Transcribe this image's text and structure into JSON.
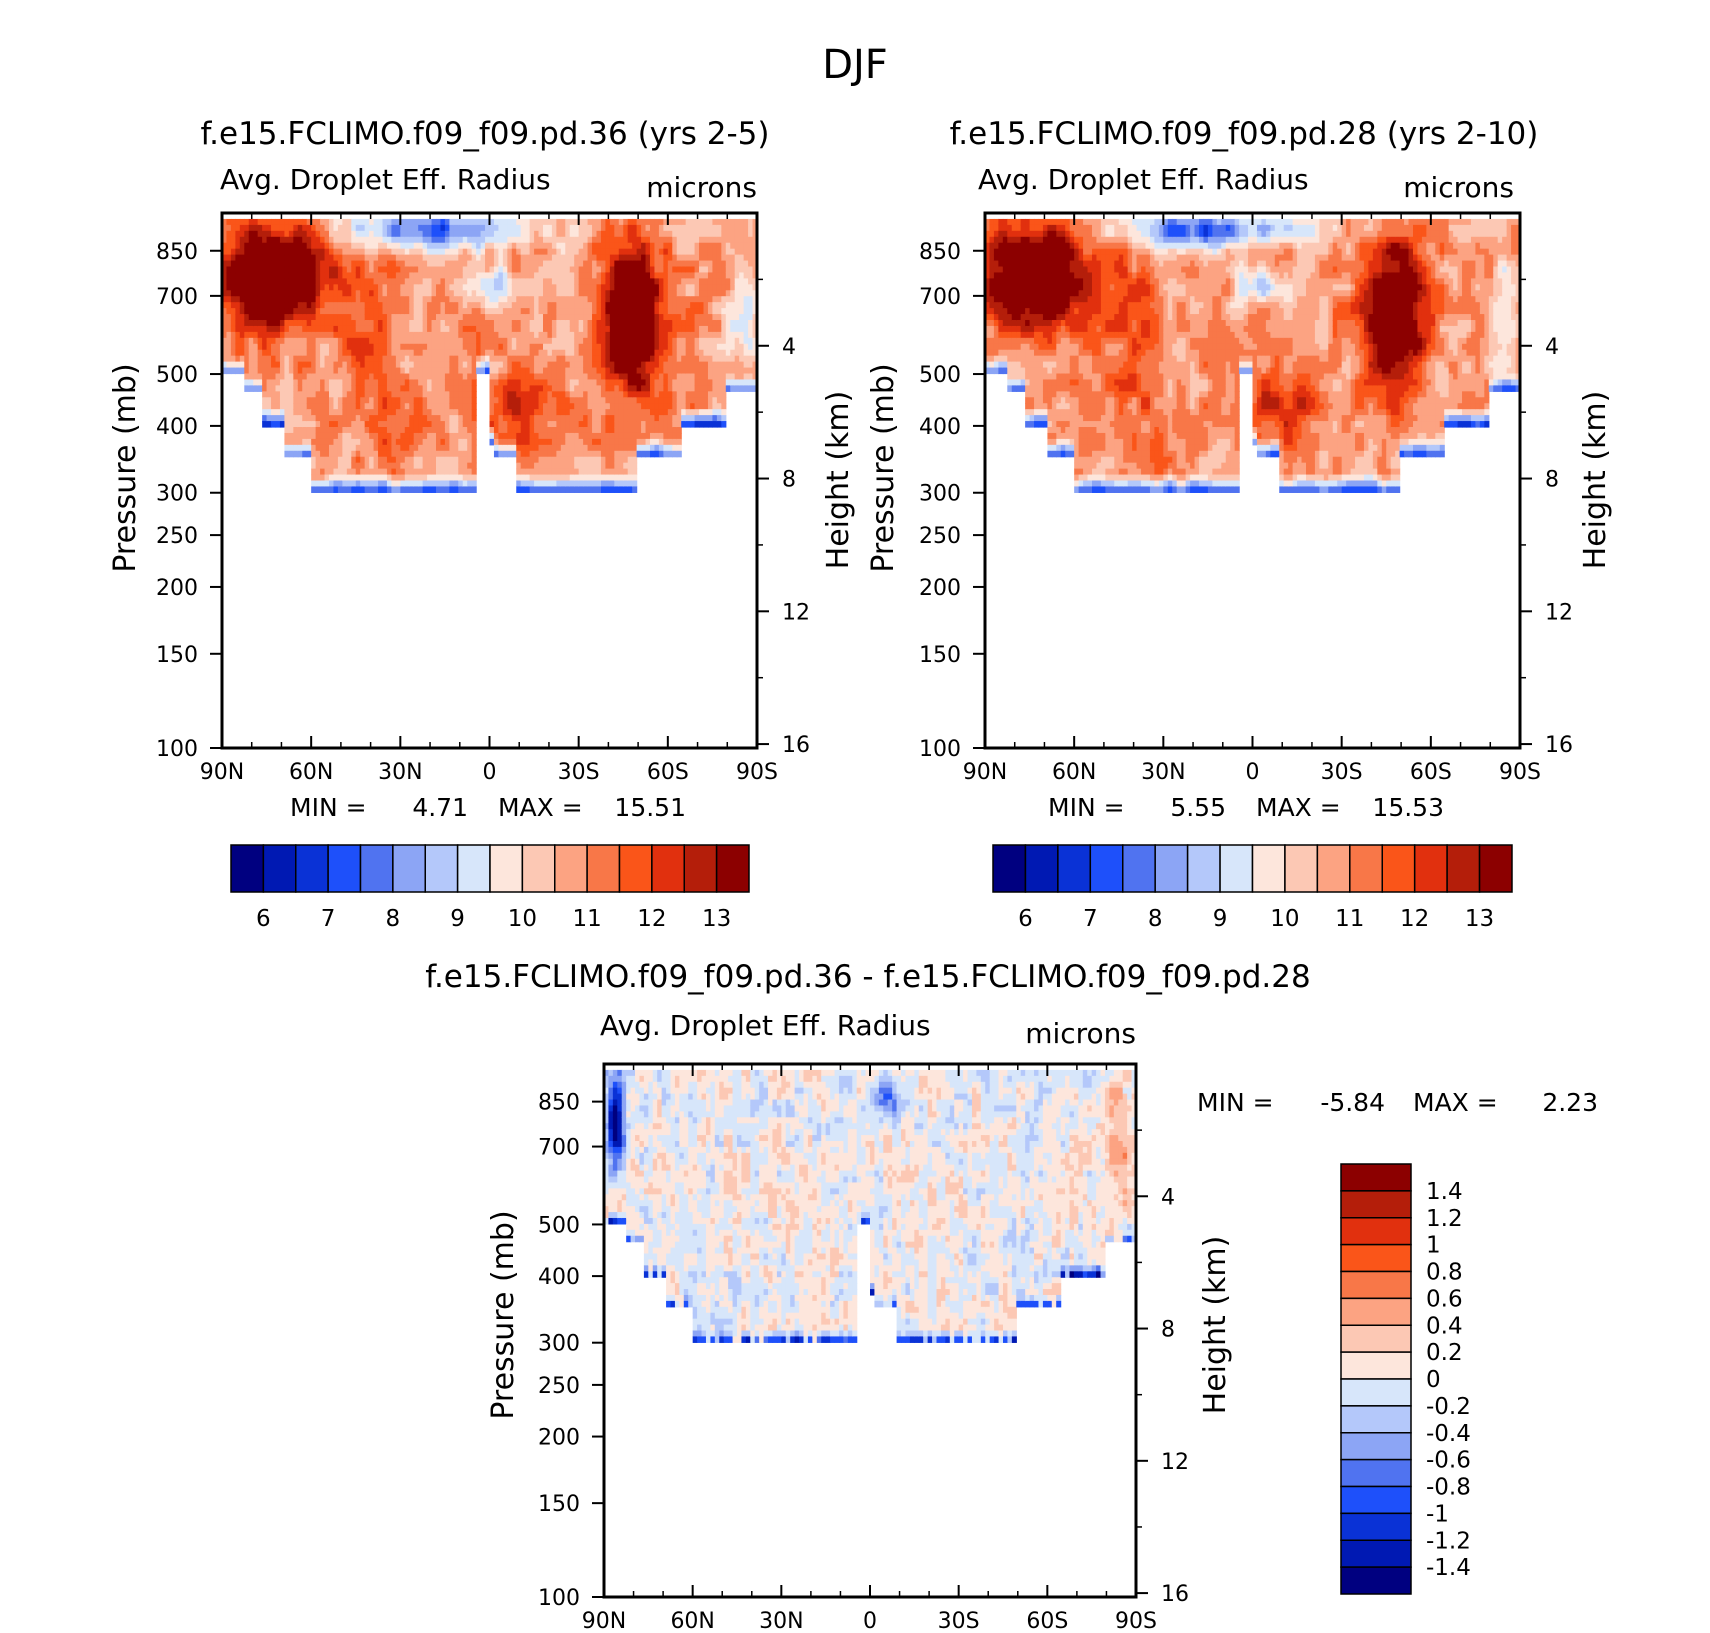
{
  "figure": {
    "title": "DJF"
  },
  "colors": {
    "abs_levels": [
      "#000080",
      "#0019b3",
      "#0a32d6",
      "#1e50fa",
      "#5073f0",
      "#8ca5f5",
      "#b4c8fa",
      "#d7e6fa",
      "#fde6dc",
      "#fcc8b4",
      "#fca382",
      "#f87748",
      "#fa5519",
      "#e1300e",
      "#b41e0a",
      "#8c0000"
    ],
    "diff_levels": [
      "#8c0000",
      "#b41e0a",
      "#e1300e",
      "#fa5519",
      "#f87748",
      "#fca382",
      "#fcc8b4",
      "#fde6dc",
      "#d7e6fa",
      "#b4c8fa",
      "#8ca5f5",
      "#5073f0",
      "#1e50fa",
      "#0a32d6",
      "#0019b3",
      "#000080"
    ]
  },
  "chart_data": [
    {
      "type": "heatmap",
      "title": "f.e15.FCLIMO.f09_f09.pd.36 (yrs 2-5)",
      "left_label": "Avg. Droplet Eff. Radius",
      "right_label": "microns",
      "ylabel": "Pressure (mb)",
      "y2label": "Height (km)",
      "x_ticks": [
        "90N",
        "60N",
        "30N",
        "0",
        "30S",
        "60S",
        "90S"
      ],
      "y_ticks": [
        100,
        150,
        200,
        250,
        300,
        400,
        500,
        700,
        850
      ],
      "y2_ticks": [
        16,
        12,
        8,
        4
      ],
      "stats": {
        "min_label": "MIN =",
        "min": "4.71",
        "max_label": "MAX =",
        "max": "15.51"
      },
      "colorbar_ticks": [
        "6",
        "7",
        "8",
        "9",
        "10",
        "11",
        "12",
        "13"
      ],
      "ylim": [
        1000,
        100
      ]
    },
    {
      "type": "heatmap",
      "title": "f.e15.FCLIMO.f09_f09.pd.28 (yrs 2-10)",
      "left_label": "Avg. Droplet Eff. Radius",
      "right_label": "microns",
      "ylabel": "Pressure (mb)",
      "y2label": "Height (km)",
      "x_ticks": [
        "90N",
        "60N",
        "30N",
        "0",
        "30S",
        "60S",
        "90S"
      ],
      "y_ticks": [
        100,
        150,
        200,
        250,
        300,
        400,
        500,
        700,
        850
      ],
      "y2_ticks": [
        16,
        12,
        8,
        4
      ],
      "stats": {
        "min_label": "MIN =",
        "min": "5.55",
        "max_label": "MAX =",
        "max": "15.53"
      },
      "colorbar_ticks": [
        "6",
        "7",
        "8",
        "9",
        "10",
        "11",
        "12",
        "13"
      ],
      "ylim": [
        1000,
        100
      ]
    },
    {
      "type": "heatmap",
      "title": "f.e15.FCLIMO.f09_f09.pd.36 - f.e15.FCLIMO.f09_f09.pd.28",
      "left_label": "Avg. Droplet Eff. Radius",
      "right_label": "microns",
      "ylabel": "Pressure (mb)",
      "y2label": "Height (km)",
      "x_ticks": [
        "90N",
        "60N",
        "30N",
        "0",
        "30S",
        "60S",
        "90S"
      ],
      "y_ticks": [
        100,
        150,
        200,
        250,
        300,
        400,
        500,
        700,
        850
      ],
      "y2_ticks": [
        16,
        12,
        8,
        4
      ],
      "stats": {
        "min_label": "MIN =",
        "min": "-5.84",
        "max_label": "MAX =",
        "max": "2.23"
      },
      "colorbar_ticks": [
        "1.4",
        "1.2",
        "1",
        "0.8",
        "0.6",
        "0.4",
        "0.2",
        "0",
        "-0.2",
        "-0.4",
        "-0.6",
        "-0.8",
        "-1",
        "-1.2",
        "-1.4"
      ],
      "ylim": [
        1000,
        100
      ]
    }
  ]
}
